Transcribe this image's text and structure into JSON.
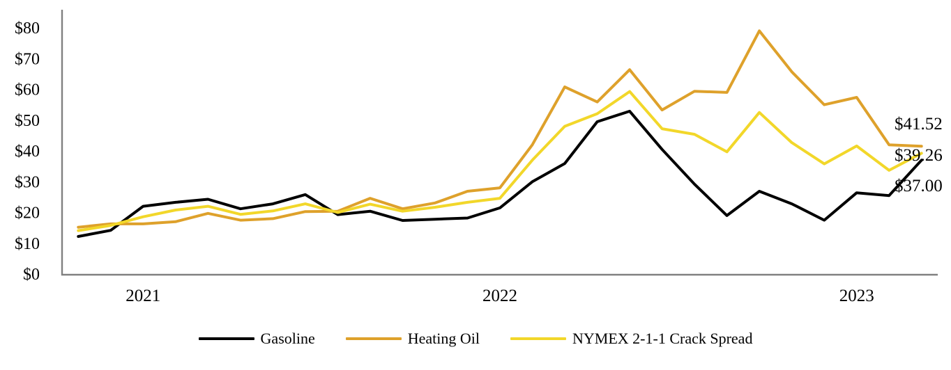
{
  "chart_data": {
    "type": "line",
    "title": "",
    "y_axis": {
      "min": 0,
      "max": 80,
      "step": 10,
      "tick_labels": [
        "$0",
        "$10",
        "$20",
        "$30",
        "$40",
        "$50",
        "$60",
        "$70",
        "$80"
      ],
      "tick_values": [
        0,
        10,
        20,
        30,
        40,
        50,
        60,
        70,
        80
      ]
    },
    "x_axis": {
      "year_labels": [
        {
          "label": "2021",
          "point_index": 2
        },
        {
          "label": "2022",
          "point_index": 13
        },
        {
          "label": "2023",
          "point_index": 24
        }
      ],
      "num_points": 27
    },
    "grid": "off",
    "legend_position": "bottom",
    "series": [
      {
        "name": "Gasoline",
        "color": "#000000",
        "end_label": "$37.00",
        "values": [
          12.2,
          14.2,
          22.0,
          23.3,
          24.3,
          21.2,
          22.8,
          25.8,
          19.3,
          20.4,
          17.4,
          17.8,
          18.2,
          21.5,
          30.0,
          35.9,
          49.5,
          52.9,
          40.5,
          29.2,
          19.0,
          26.9,
          22.8,
          17.5,
          26.4,
          25.5,
          37.0
        ]
      },
      {
        "name": "Heating Oil",
        "color": "#DEA12B",
        "end_label": "$41.52",
        "values": [
          15.2,
          16.3,
          16.3,
          17.0,
          19.7,
          17.5,
          18.0,
          20.3,
          20.4,
          24.6,
          21.2,
          23.1,
          26.9,
          28.0,
          42.0,
          60.8,
          55.9,
          66.4,
          53.3,
          59.4,
          59.0,
          79.0,
          65.7,
          55.0,
          57.4,
          42.0,
          41.52
        ]
      },
      {
        "name": "NYMEX 2-1-1 Crack Spread",
        "color": "#F2D72A",
        "end_label": "$39.26",
        "values": [
          14.1,
          15.8,
          18.6,
          20.8,
          22.0,
          19.4,
          20.5,
          22.8,
          20.0,
          22.7,
          20.4,
          21.7,
          23.3,
          24.6,
          37.0,
          48.0,
          52.1,
          59.3,
          47.2,
          45.4,
          39.7,
          52.5,
          42.7,
          35.8,
          41.6,
          33.7,
          39.26
        ]
      }
    ],
    "axis_color": "#808080"
  }
}
